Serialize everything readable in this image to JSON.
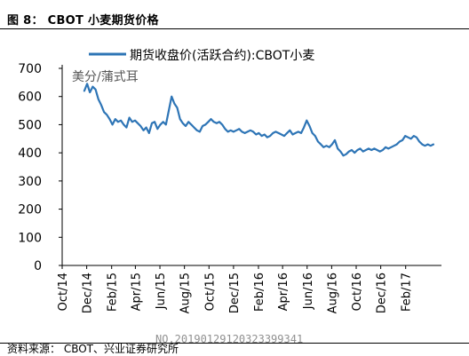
{
  "figure": {
    "title": "图 8： CBOT 小麦期货价格",
    "source": "资料来源： CBOT、兴业证券研究所",
    "watermark": "NO.20190129120323399341"
  },
  "chart_data": {
    "type": "line",
    "ylabel": "美分/蒲式耳",
    "ylim": [
      0,
      700
    ],
    "yticks": [
      0,
      100,
      200,
      300,
      400,
      500,
      600,
      700
    ],
    "xlim": [
      "2014-10-01",
      "2017-05-01"
    ],
    "xtick_labels": [
      "Oct/14",
      "Dec/14",
      "Feb/15",
      "Apr/15",
      "Jun/15",
      "Aug/15",
      "Oct/15",
      "Dec/15",
      "Feb/16",
      "Apr/16",
      "Jun/16",
      "Aug/16",
      "Oct/16",
      "Dec/16",
      "Feb/17"
    ],
    "xtick_dates": [
      "2014-10-01",
      "2014-12-01",
      "2015-02-01",
      "2015-04-01",
      "2015-06-01",
      "2015-08-01",
      "2015-10-01",
      "2015-12-01",
      "2016-02-01",
      "2016-04-01",
      "2016-06-01",
      "2016-08-01",
      "2016-10-01",
      "2016-12-01",
      "2017-02-01"
    ],
    "grid": false,
    "legend": "top-center",
    "series": [
      {
        "name": "期货收盘价(活跃合约):CBOT小麦",
        "color": "#2e75b6",
        "points": [
          [
            "2014-11-25",
            620
          ],
          [
            "2014-12-02",
            645
          ],
          [
            "2014-12-09",
            615
          ],
          [
            "2014-12-16",
            635
          ],
          [
            "2014-12-23",
            625
          ],
          [
            "2014-12-30",
            590
          ],
          [
            "2015-01-06",
            570
          ],
          [
            "2015-01-13",
            545
          ],
          [
            "2015-01-20",
            535
          ],
          [
            "2015-01-27",
            520
          ],
          [
            "2015-02-03",
            500
          ],
          [
            "2015-02-10",
            520
          ],
          [
            "2015-02-17",
            510
          ],
          [
            "2015-02-24",
            515
          ],
          [
            "2015-03-03",
            500
          ],
          [
            "2015-03-10",
            490
          ],
          [
            "2015-03-17",
            525
          ],
          [
            "2015-03-24",
            510
          ],
          [
            "2015-03-31",
            515
          ],
          [
            "2015-04-07",
            505
          ],
          [
            "2015-04-14",
            495
          ],
          [
            "2015-04-21",
            480
          ],
          [
            "2015-04-28",
            490
          ],
          [
            "2015-05-05",
            470
          ],
          [
            "2015-05-12",
            505
          ],
          [
            "2015-05-19",
            510
          ],
          [
            "2015-05-26",
            485
          ],
          [
            "2015-06-02",
            500
          ],
          [
            "2015-06-09",
            510
          ],
          [
            "2015-06-16",
            500
          ],
          [
            "2015-06-23",
            550
          ],
          [
            "2015-06-30",
            600
          ],
          [
            "2015-07-07",
            575
          ],
          [
            "2015-07-14",
            560
          ],
          [
            "2015-07-21",
            520
          ],
          [
            "2015-07-28",
            505
          ],
          [
            "2015-08-04",
            495
          ],
          [
            "2015-08-11",
            510
          ],
          [
            "2015-08-18",
            500
          ],
          [
            "2015-08-25",
            490
          ],
          [
            "2015-09-01",
            480
          ],
          [
            "2015-09-08",
            475
          ],
          [
            "2015-09-15",
            495
          ],
          [
            "2015-09-22",
            500
          ],
          [
            "2015-09-29",
            510
          ],
          [
            "2015-10-06",
            520
          ],
          [
            "2015-10-13",
            510
          ],
          [
            "2015-10-20",
            505
          ],
          [
            "2015-10-27",
            510
          ],
          [
            "2015-11-03",
            500
          ],
          [
            "2015-11-10",
            485
          ],
          [
            "2015-11-17",
            475
          ],
          [
            "2015-11-24",
            480
          ],
          [
            "2015-12-01",
            475
          ],
          [
            "2015-12-08",
            480
          ],
          [
            "2015-12-15",
            485
          ],
          [
            "2015-12-22",
            475
          ],
          [
            "2015-12-29",
            470
          ],
          [
            "2016-01-05",
            475
          ],
          [
            "2016-01-12",
            480
          ],
          [
            "2016-01-19",
            475
          ],
          [
            "2016-01-26",
            465
          ],
          [
            "2016-02-02",
            470
          ],
          [
            "2016-02-09",
            460
          ],
          [
            "2016-02-16",
            465
          ],
          [
            "2016-02-23",
            455
          ],
          [
            "2016-03-01",
            460
          ],
          [
            "2016-03-08",
            470
          ],
          [
            "2016-03-15",
            475
          ],
          [
            "2016-03-22",
            470
          ],
          [
            "2016-03-29",
            465
          ],
          [
            "2016-04-05",
            460
          ],
          [
            "2016-04-12",
            470
          ],
          [
            "2016-04-19",
            480
          ],
          [
            "2016-04-26",
            465
          ],
          [
            "2016-05-03",
            470
          ],
          [
            "2016-05-10",
            475
          ],
          [
            "2016-05-17",
            470
          ],
          [
            "2016-05-24",
            490
          ],
          [
            "2016-05-31",
            515
          ],
          [
            "2016-06-07",
            495
          ],
          [
            "2016-06-14",
            470
          ],
          [
            "2016-06-21",
            460
          ],
          [
            "2016-06-28",
            440
          ],
          [
            "2016-07-05",
            430
          ],
          [
            "2016-07-12",
            420
          ],
          [
            "2016-07-19",
            425
          ],
          [
            "2016-07-26",
            420
          ],
          [
            "2016-08-02",
            430
          ],
          [
            "2016-08-09",
            445
          ],
          [
            "2016-08-16",
            415
          ],
          [
            "2016-08-23",
            405
          ],
          [
            "2016-08-30",
            390
          ],
          [
            "2016-09-06",
            395
          ],
          [
            "2016-09-13",
            405
          ],
          [
            "2016-09-20",
            410
          ],
          [
            "2016-09-27",
            400
          ],
          [
            "2016-10-04",
            410
          ],
          [
            "2016-10-11",
            415
          ],
          [
            "2016-10-18",
            405
          ],
          [
            "2016-10-25",
            410
          ],
          [
            "2016-11-01",
            415
          ],
          [
            "2016-11-08",
            410
          ],
          [
            "2016-11-15",
            415
          ],
          [
            "2016-11-22",
            410
          ],
          [
            "2016-11-29",
            405
          ],
          [
            "2016-12-06",
            410
          ],
          [
            "2016-12-13",
            420
          ],
          [
            "2016-12-20",
            415
          ],
          [
            "2016-12-27",
            420
          ],
          [
            "2017-01-03",
            425
          ],
          [
            "2017-01-10",
            430
          ],
          [
            "2017-01-17",
            440
          ],
          [
            "2017-01-24",
            445
          ],
          [
            "2017-01-31",
            460
          ],
          [
            "2017-02-07",
            455
          ],
          [
            "2017-02-14",
            450
          ],
          [
            "2017-02-21",
            460
          ],
          [
            "2017-02-28",
            455
          ],
          [
            "2017-03-07",
            440
          ],
          [
            "2017-03-14",
            430
          ],
          [
            "2017-03-21",
            425
          ],
          [
            "2017-03-28",
            430
          ],
          [
            "2017-04-04",
            425
          ],
          [
            "2017-04-11",
            430
          ]
        ]
      }
    ]
  }
}
